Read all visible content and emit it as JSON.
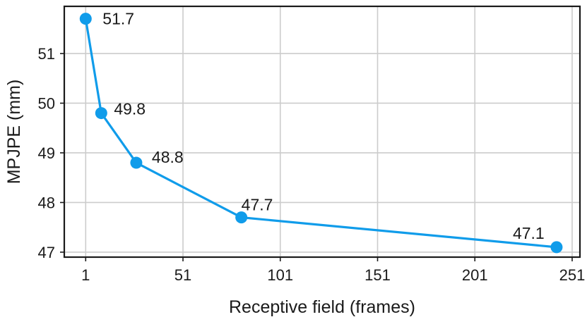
{
  "chart_data": {
    "type": "line",
    "title": "",
    "xlabel": "Receptive field (frames)",
    "ylabel": "MPJPE (mm)",
    "x": [
      1,
      9,
      27,
      81,
      243
    ],
    "series": [
      {
        "values": [
          51.7,
          49.8,
          48.8,
          47.7,
          47.1
        ],
        "color": "#109cea"
      }
    ],
    "data_labels": [
      "51.7",
      "49.8",
      "48.8",
      "47.7",
      "47.1"
    ],
    "xlim": [
      -10,
      255
    ],
    "ylim": [
      46.9,
      51.95
    ],
    "xticks": [
      1,
      51,
      101,
      151,
      201,
      251
    ],
    "xtick_labels": [
      "1",
      "51",
      "101",
      "151",
      "201",
      "251"
    ],
    "yticks": [
      47,
      48,
      49,
      50,
      51
    ],
    "ytick_labels": [
      "47",
      "48",
      "49",
      "50",
      "51"
    ],
    "grid": true,
    "legend": "none"
  }
}
